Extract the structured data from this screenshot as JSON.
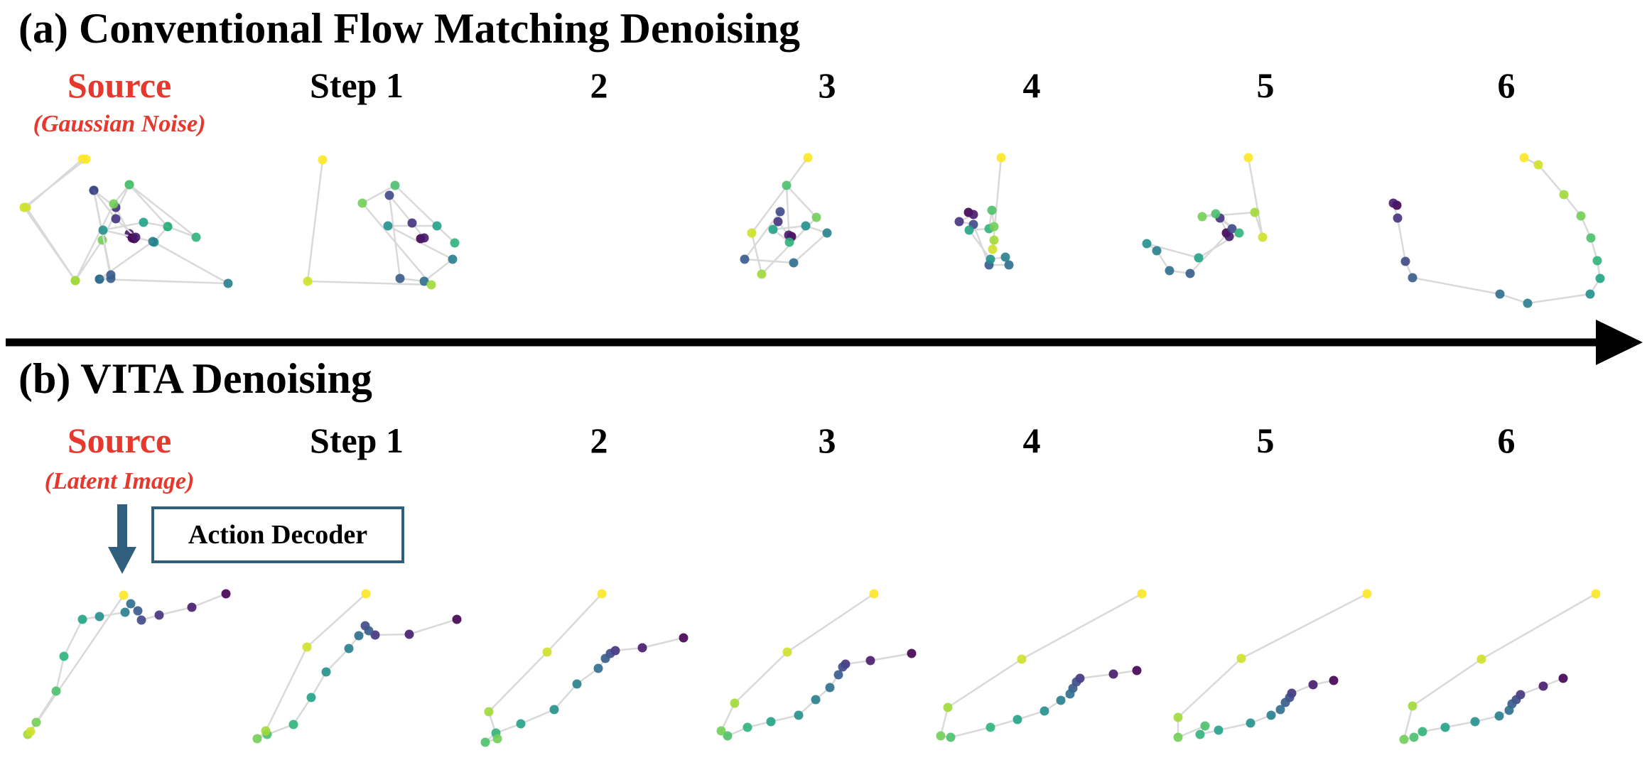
{
  "panel_a": {
    "title": "(a) Conventional Flow Matching Denoising",
    "source_label": "Source",
    "source_sublabel": "(Gaussian Noise)",
    "step_labels": [
      "Step 1",
      "2",
      "3",
      "4",
      "5",
      "6"
    ]
  },
  "panel_b": {
    "title": "(b) VITA Denoising",
    "source_label": "Source",
    "source_sublabel": "(Latent Image)",
    "step_labels": [
      "Step 1",
      "2",
      "3",
      "4",
      "5",
      "6"
    ],
    "decoder_label": "Action Decoder"
  },
  "colors": {
    "source_text": "#e8372c",
    "arrow": "#000000",
    "decoder_accent": "#2f5f7c",
    "path_line": "#d9d9d9",
    "colormap": "viridis"
  },
  "trajectories": {
    "point_count": 15,
    "color_order": "viridis, dark purple to yellow along the trajectory",
    "conventional": [
      [
        [
          186,
          335
        ],
        [
          191,
          334
        ],
        [
          163,
          308
        ],
        [
          132,
          268
        ],
        [
          156,
          387
        ],
        [
          140,
          393
        ],
        [
          215,
          340
        ],
        [
          145,
          324
        ],
        [
          202,
          313
        ],
        [
          236,
          319
        ],
        [
          182,
          260
        ],
        [
          160,
          287
        ],
        [
          106,
          395
        ],
        [
          34,
          292
        ],
        [
          121,
          224
        ]
      ],
      [
        [
          592,
          336
        ],
        [
          597,
          335
        ],
        [
          580,
          314
        ],
        [
          548,
          275
        ],
        [
          563,
          392
        ],
        [
          597,
          396
        ],
        [
          637,
          365
        ],
        [
          546,
          318
        ],
        [
          615,
          318
        ],
        [
          640,
          342
        ],
        [
          556,
          261
        ],
        [
          510,
          286
        ],
        [
          607,
          401
        ],
        [
          433,
          396
        ],
        [
          454,
          225
        ]
      ],
      [
        [
          1114,
          333
        ],
        [
          1110,
          331
        ],
        [
          1095,
          312
        ],
        [
          1098,
          298
        ],
        [
          1048,
          365
        ],
        [
          1117,
          370
        ],
        [
          1164,
          328
        ],
        [
          1134,
          318
        ],
        [
          1088,
          323
        ],
        [
          1111,
          341
        ],
        [
          1107,
          261
        ],
        [
          1149,
          306
        ],
        [
          1072,
          386
        ],
        [
          1058,
          328
        ],
        [
          1137,
          222
        ]
      ],
      [
        [
          1363,
          299
        ],
        [
          1370,
          302
        ],
        [
          1350,
          312
        ],
        [
          1370,
          316
        ],
        [
          1392,
          373
        ],
        [
          1420,
          373
        ],
        [
          1415,
          362
        ],
        [
          1394,
          365
        ],
        [
          1364,
          324
        ],
        [
          1392,
          322
        ],
        [
          1396,
          296
        ],
        [
          1399,
          319
        ],
        [
          1399,
          338
        ],
        [
          1397,
          351
        ],
        [
          1409,
          222
        ]
      ],
      [
        [
          1726,
          328
        ],
        [
          1730,
          333
        ],
        [
          1717,
          307
        ],
        [
          1734,
          322
        ],
        [
          1675,
          385
        ],
        [
          1646,
          381
        ],
        [
          1628,
          353
        ],
        [
          1614,
          343
        ],
        [
          1687,
          363
        ],
        [
          1744,
          328
        ],
        [
          1711,
          301
        ],
        [
          1692,
          305
        ],
        [
          1766,
          299
        ],
        [
          1777,
          334
        ],
        [
          1757,
          222
        ]
      ],
      [
        [
          1966,
          289
        ],
        [
          1961,
          286
        ],
        [
          1967,
          307
        ],
        [
          1978,
          368
        ],
        [
          1988,
          391
        ],
        [
          2111,
          414
        ],
        [
          2150,
          427
        ],
        [
          2238,
          414
        ],
        [
          2252,
          392
        ],
        [
          2248,
          367
        ],
        [
          2239,
          335
        ],
        [
          2225,
          304
        ],
        [
          2201,
          274
        ],
        [
          2165,
          232
        ],
        [
          2145,
          222
        ]
      ]
    ]
  }
}
